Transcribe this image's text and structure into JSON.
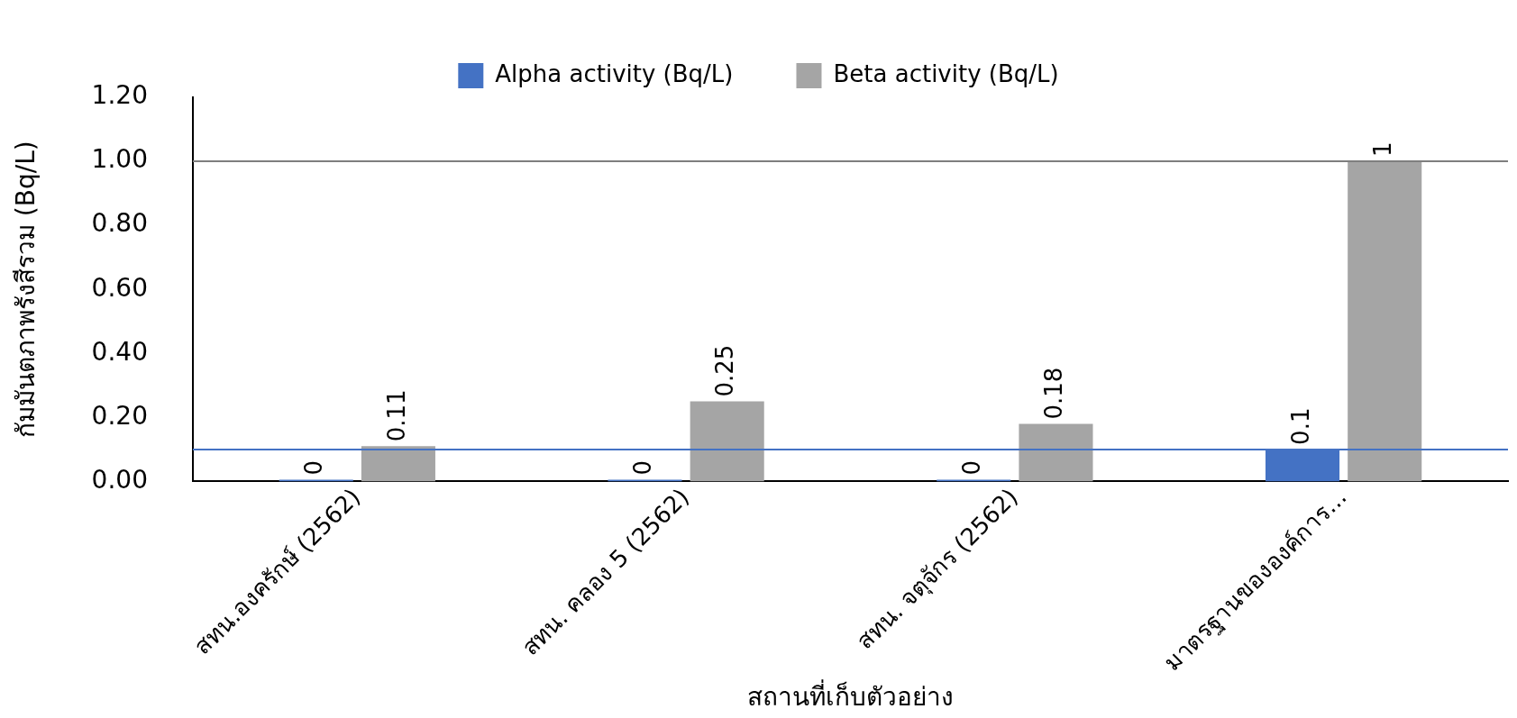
{
  "chart_data": {
    "type": "bar",
    "xlabel": "สถานที่เก็บตัวอย่าง",
    "ylabel": "กัมมันตภาพรังสีรวม (Bq/L)",
    "categories": [
      "สทน.องครักษ์ (2562)",
      "สทน. คลอง 5 (2562)",
      "สทน. จตุจักร (2562)",
      "มาตรฐานขององค์การ..."
    ],
    "series": [
      {
        "name": "Alpha activity (Bq/L)",
        "color": "#4472c4",
        "values": [
          0,
          0,
          0,
          0.1
        ]
      },
      {
        "name": "Beta activity (Bq/L)",
        "color": "#a5a5a5",
        "values": [
          0.11,
          0.25,
          0.18,
          1
        ]
      }
    ],
    "ylim": [
      0,
      1.2
    ],
    "yticks": [
      {
        "value": 0,
        "label": "0.00"
      },
      {
        "value": 0.2,
        "label": "0.20"
      },
      {
        "value": 0.4,
        "label": "0.40"
      },
      {
        "value": 0.6,
        "label": "0.60"
      },
      {
        "value": 0.8,
        "label": "0.80"
      },
      {
        "value": 1,
        "label": "1.00"
      },
      {
        "value": 1.2,
        "label": "1.20"
      }
    ],
    "ref_lines": [
      {
        "axis": "y",
        "value": 1,
        "color": "#7f7f7f"
      },
      {
        "axis": "y",
        "value": 0.1,
        "color": "#4472c4"
      }
    ],
    "data_labels": true,
    "grid": false,
    "legend": "top"
  }
}
